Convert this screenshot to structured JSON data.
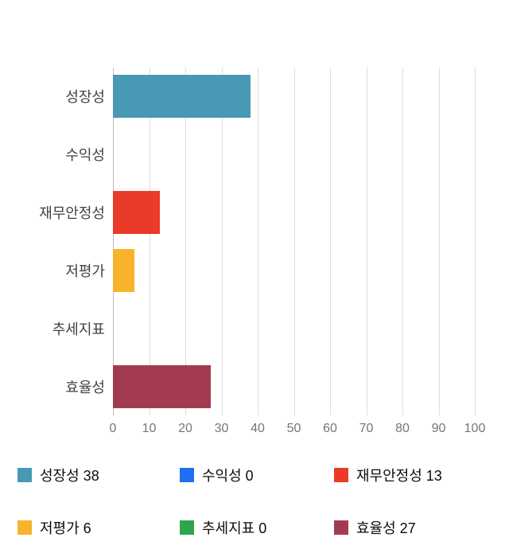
{
  "chart_data": {
    "type": "bar",
    "orientation": "horizontal",
    "title": "",
    "xlabel": "",
    "ylabel": "",
    "xlim": [
      0,
      100
    ],
    "ticks": [
      0,
      10,
      20,
      30,
      40,
      50,
      60,
      70,
      80,
      90,
      100
    ],
    "grid": true,
    "categories": [
      "성장성",
      "수익성",
      "재무안정성",
      "저평가",
      "추세지표",
      "효율성"
    ],
    "values": [
      38,
      0,
      13,
      6,
      0,
      27
    ],
    "colors": [
      "#4899b4",
      "#1e6ff2",
      "#ea3b28",
      "#f7b32a",
      "#2fa34d",
      "#a23b50"
    ],
    "legend_position": "bottom",
    "legend": [
      {
        "label": "성장성 38",
        "color": "#4899b4"
      },
      {
        "label": "수익성 0",
        "color": "#1e6ff2"
      },
      {
        "label": "재무안정성 13",
        "color": "#ea3b28"
      },
      {
        "label": "저평가 6",
        "color": "#f7b32a"
      },
      {
        "label": "추세지표 0",
        "color": "#2fa34d"
      },
      {
        "label": "효율성 27",
        "color": "#a23b50"
      }
    ]
  }
}
